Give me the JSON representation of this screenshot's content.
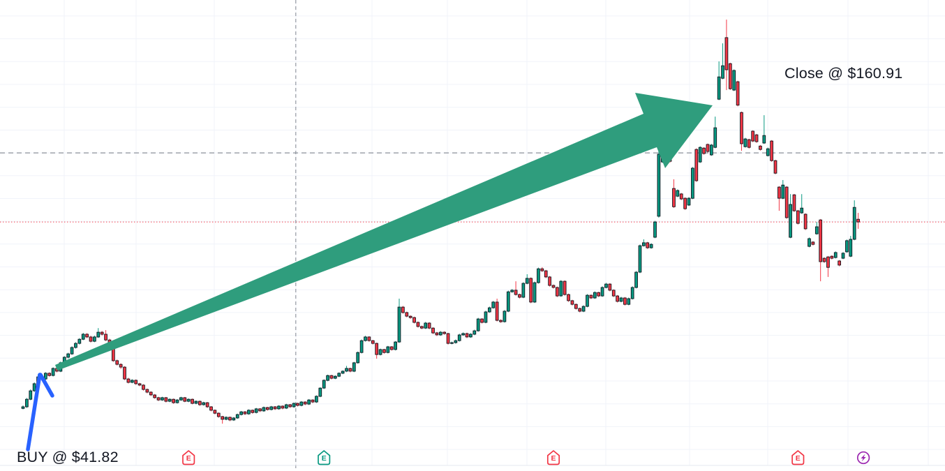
{
  "annotations": {
    "buy_label": "BUY @ $41.82",
    "close_label": "Close @ $160.91"
  },
  "colors": {
    "background": "#ffffff",
    "candle_up": "#089981",
    "candle_down": "#f23645",
    "candle_border": "#10131c",
    "big_arrow": "#2f9d7d",
    "hand_arrow": "#2962ff",
    "grid": "#f0f3fa",
    "dashed_level": "#8b909a",
    "last_price_line": "#f23645",
    "text": "#131722",
    "separator": "#e6e9ef",
    "marker_earnings_red": "#f23645",
    "marker_earnings_green": "#089981",
    "marker_split_purple": "#9c27b0"
  },
  "chart_data": {
    "type": "candlestick",
    "title": "",
    "xlabel": "",
    "ylabel": "",
    "grid": "on",
    "axis_labels_visible": false,
    "y_axis": {
      "min": 3,
      "max": 207,
      "gridline_step_dollars": 10
    },
    "buy_point": {
      "price": 41.82,
      "candle_index": 4
    },
    "close_point": {
      "price": 160.91,
      "candle_index": 190
    },
    "levels": [
      {
        "name": "gray-dashed-level",
        "price": 140.0,
        "style": "dashed",
        "color": "#8b909a"
      },
      {
        "name": "last-price-line",
        "price": 109.7,
        "style": "dotted",
        "color": "#f23645"
      }
    ],
    "vertical_dashed_line": {
      "candle_index": 72.5,
      "style": "dashed",
      "color": "#8b909a"
    },
    "events": [
      {
        "type": "earnings",
        "label": "E",
        "color": "#f23645",
        "index": 44
      },
      {
        "type": "earnings",
        "label": "E",
        "color": "#089981",
        "index": 80
      },
      {
        "type": "earnings",
        "label": "E",
        "color": "#f23645",
        "index": 141
      },
      {
        "type": "earnings",
        "label": "E",
        "color": "#f23645",
        "index": 206
      },
      {
        "type": "split",
        "label": "lightning",
        "color": "#9c27b0",
        "index": 223.4
      }
    ],
    "candles": [
      [
        28.0,
        29.3,
        27.6,
        28.7
      ],
      [
        28.7,
        32.6,
        28.2,
        32.0
      ],
      [
        32.0,
        36.3,
        31.6,
        35.7
      ],
      [
        35.7,
        39.4,
        35.2,
        38.8
      ],
      [
        38.8,
        42.9,
        36.2,
        41.82
      ],
      [
        41.8,
        42.3,
        40.3,
        40.9
      ],
      [
        40.9,
        43.9,
        40.5,
        43.4
      ],
      [
        43.4,
        43.8,
        41.9,
        42.4
      ],
      [
        42.4,
        46.0,
        42.0,
        45.5
      ],
      [
        45.5,
        45.9,
        43.8,
        44.3
      ],
      [
        44.3,
        48.5,
        43.9,
        48.0
      ],
      [
        48.0,
        50.9,
        47.6,
        50.4
      ],
      [
        50.4,
        52.4,
        49.9,
        51.9
      ],
      [
        51.9,
        55.2,
        51.5,
        54.7
      ],
      [
        54.7,
        57.0,
        54.2,
        56.5
      ],
      [
        56.5,
        58.8,
        56.0,
        58.3
      ],
      [
        58.3,
        61.1,
        57.9,
        60.5
      ],
      [
        60.5,
        61.0,
        58.8,
        59.3
      ],
      [
        59.3,
        59.8,
        56.9,
        57.4
      ],
      [
        57.4,
        59.9,
        57.0,
        59.3
      ],
      [
        59.3,
        63.2,
        58.9,
        61.4
      ],
      [
        61.4,
        61.9,
        59.9,
        60.5
      ],
      [
        60.5,
        62.3,
        57.5,
        58.0
      ],
      [
        58.0,
        58.5,
        56.3,
        56.8
      ],
      [
        56.8,
        57.1,
        48.4,
        48.9
      ],
      [
        48.9,
        49.4,
        46.8,
        47.3
      ],
      [
        47.3,
        47.8,
        45.3,
        46.1
      ],
      [
        46.1,
        46.5,
        40.4,
        40.9
      ],
      [
        40.9,
        41.4,
        38.9,
        39.4
      ],
      [
        39.4,
        40.8,
        39.0,
        40.3
      ],
      [
        40.3,
        40.7,
        38.3,
        38.8
      ],
      [
        38.8,
        39.2,
        37.7,
        38.2
      ],
      [
        38.2,
        38.6,
        35.8,
        36.3
      ],
      [
        36.3,
        36.7,
        34.6,
        35.1
      ],
      [
        35.1,
        35.5,
        33.4,
        33.9
      ],
      [
        33.9,
        34.3,
        32.2,
        32.7
      ],
      [
        32.7,
        33.1,
        31.2,
        31.7
      ],
      [
        31.7,
        33.1,
        31.3,
        32.7
      ],
      [
        32.7,
        33.0,
        30.6,
        31.1
      ],
      [
        31.1,
        32.4,
        30.7,
        32.0
      ],
      [
        32.0,
        32.3,
        30.0,
        30.5
      ],
      [
        30.5,
        32.1,
        30.1,
        31.7
      ],
      [
        31.7,
        33.1,
        31.3,
        32.7
      ],
      [
        32.7,
        33.0,
        30.7,
        31.1
      ],
      [
        31.1,
        32.4,
        30.7,
        32.0
      ],
      [
        32.0,
        32.3,
        29.8,
        30.2
      ],
      [
        30.2,
        31.5,
        29.8,
        31.1
      ],
      [
        31.1,
        31.4,
        29.1,
        29.6
      ],
      [
        29.6,
        30.9,
        29.2,
        30.5
      ],
      [
        30.5,
        30.8,
        28.2,
        28.7
      ],
      [
        28.7,
        29.0,
        26.7,
        27.2
      ],
      [
        27.2,
        27.5,
        25.4,
        25.9
      ],
      [
        25.9,
        26.2,
        23.9,
        24.4
      ],
      [
        24.4,
        24.7,
        21.3,
        23.2
      ],
      [
        23.2,
        24.5,
        22.8,
        24.1
      ],
      [
        24.1,
        24.4,
        22.4,
        22.9
      ],
      [
        22.9,
        24.2,
        22.5,
        23.8
      ],
      [
        23.8,
        25.7,
        23.4,
        25.3
      ],
      [
        25.3,
        26.9,
        24.9,
        26.5
      ],
      [
        26.5,
        26.8,
        25.1,
        25.6
      ],
      [
        25.6,
        27.6,
        25.2,
        27.2
      ],
      [
        27.2,
        27.5,
        25.7,
        26.2
      ],
      [
        26.2,
        28.2,
        25.8,
        27.8
      ],
      [
        27.8,
        28.1,
        26.4,
        26.9
      ],
      [
        26.9,
        28.8,
        26.5,
        28.4
      ],
      [
        28.4,
        28.7,
        27.0,
        27.5
      ],
      [
        27.5,
        29.1,
        27.1,
        28.7
      ],
      [
        28.7,
        29.0,
        27.3,
        27.8
      ],
      [
        27.8,
        29.4,
        27.4,
        29.0
      ],
      [
        29.0,
        29.3,
        27.6,
        28.1
      ],
      [
        28.1,
        30.0,
        27.7,
        29.6
      ],
      [
        29.6,
        29.9,
        28.2,
        28.7
      ],
      [
        28.7,
        30.6,
        28.3,
        30.2
      ],
      [
        30.2,
        30.5,
        28.8,
        29.3
      ],
      [
        29.3,
        31.2,
        28.9,
        30.8
      ],
      [
        30.8,
        31.1,
        29.4,
        29.9
      ],
      [
        29.9,
        32.1,
        29.5,
        31.7
      ],
      [
        31.7,
        32.0,
        30.3,
        30.8
      ],
      [
        30.8,
        33.7,
        30.4,
        33.3
      ],
      [
        33.3,
        37.3,
        32.9,
        36.9
      ],
      [
        36.9,
        40.7,
        36.5,
        40.3
      ],
      [
        40.3,
        42.8,
        39.9,
        42.4
      ],
      [
        42.4,
        42.7,
        40.7,
        41.2
      ],
      [
        41.2,
        42.5,
        40.8,
        42.1
      ],
      [
        42.1,
        43.8,
        41.7,
        43.4
      ],
      [
        43.4,
        44.7,
        43.0,
        44.3
      ],
      [
        44.3,
        46.6,
        43.9,
        45.5
      ],
      [
        45.5,
        45.8,
        43.8,
        44.3
      ],
      [
        44.3,
        48.4,
        43.9,
        48.0
      ],
      [
        48.0,
        52.9,
        47.6,
        52.5
      ],
      [
        52.5,
        58.2,
        52.1,
        57.7
      ],
      [
        57.7,
        59.8,
        57.3,
        59.3
      ],
      [
        59.3,
        59.6,
        57.2,
        57.7
      ],
      [
        57.7,
        58.0,
        56.0,
        56.5
      ],
      [
        56.5,
        56.8,
        49.8,
        51.6
      ],
      [
        51.6,
        54.2,
        51.2,
        53.8
      ],
      [
        53.8,
        54.1,
        52.0,
        52.5
      ],
      [
        52.5,
        55.4,
        52.1,
        55.0
      ],
      [
        55.0,
        55.3,
        53.3,
        53.8
      ],
      [
        53.8,
        57.5,
        53.4,
        57.1
      ],
      [
        57.1,
        76.1,
        56.7,
        72.4
      ],
      [
        72.4,
        72.9,
        69.5,
        70.0
      ],
      [
        70.0,
        70.4,
        67.9,
        68.4
      ],
      [
        68.4,
        68.8,
        67.3,
        67.8
      ],
      [
        67.8,
        68.2,
        65.2,
        65.7
      ],
      [
        65.7,
        66.1,
        63.4,
        63.9
      ],
      [
        63.9,
        64.3,
        62.7,
        63.2
      ],
      [
        63.2,
        65.9,
        62.8,
        65.4
      ],
      [
        65.4,
        65.8,
        62.7,
        63.2
      ],
      [
        63.2,
        63.6,
        60.6,
        61.1
      ],
      [
        61.1,
        61.5,
        59.7,
        60.2
      ],
      [
        60.2,
        61.9,
        59.8,
        61.4
      ],
      [
        61.4,
        61.8,
        60.3,
        60.8
      ],
      [
        60.8,
        61.1,
        56.0,
        56.5
      ],
      [
        56.5,
        57.3,
        56.1,
        56.8
      ],
      [
        56.8,
        58.2,
        56.4,
        57.7
      ],
      [
        57.7,
        60.7,
        57.3,
        60.2
      ],
      [
        60.2,
        61.3,
        59.8,
        60.8
      ],
      [
        60.8,
        61.2,
        58.8,
        59.3
      ],
      [
        59.3,
        61.0,
        58.9,
        60.5
      ],
      [
        60.5,
        62.5,
        60.1,
        62.0
      ],
      [
        62.0,
        67.7,
        61.6,
        67.2
      ],
      [
        67.2,
        67.5,
        65.2,
        65.7
      ],
      [
        65.7,
        70.8,
        65.3,
        70.3
      ],
      [
        70.3,
        72.6,
        69.9,
        72.1
      ],
      [
        72.1,
        75.1,
        71.7,
        74.6
      ],
      [
        74.6,
        76.1,
        66.1,
        66.6
      ],
      [
        66.6,
        67.0,
        65.5,
        66.0
      ],
      [
        66.0,
        71.1,
        65.6,
        70.6
      ],
      [
        70.6,
        79.6,
        70.2,
        79.1
      ],
      [
        79.1,
        80.3,
        78.7,
        79.8
      ],
      [
        79.8,
        83.7,
        77.4,
        77.9
      ],
      [
        77.9,
        78.3,
        76.2,
        76.7
      ],
      [
        76.7,
        83.3,
        76.3,
        82.8
      ],
      [
        82.8,
        86.8,
        82.4,
        85.0
      ],
      [
        85.0,
        85.4,
        74.1,
        74.6
      ],
      [
        74.6,
        83.6,
        74.2,
        83.1
      ],
      [
        83.1,
        89.7,
        82.7,
        89.2
      ],
      [
        89.2,
        89.9,
        87.8,
        88.3
      ],
      [
        88.3,
        88.7,
        85.1,
        85.6
      ],
      [
        85.6,
        86.0,
        81.4,
        81.9
      ],
      [
        81.9,
        82.3,
        80.5,
        81.0
      ],
      [
        81.0,
        81.4,
        76.8,
        77.3
      ],
      [
        77.3,
        84.2,
        76.9,
        83.7
      ],
      [
        83.7,
        84.1,
        77.4,
        77.9
      ],
      [
        77.9,
        78.3,
        74.7,
        75.2
      ],
      [
        75.2,
        75.6,
        73.1,
        73.6
      ],
      [
        73.6,
        74.0,
        71.3,
        71.8
      ],
      [
        71.8,
        72.2,
        70.1,
        70.6
      ],
      [
        70.6,
        73.2,
        70.2,
        72.7
      ],
      [
        72.7,
        78.1,
        72.3,
        77.6
      ],
      [
        77.6,
        77.9,
        75.9,
        76.4
      ],
      [
        76.4,
        79.3,
        76.0,
        78.8
      ],
      [
        78.8,
        79.1,
        76.8,
        77.3
      ],
      [
        77.3,
        81.5,
        76.9,
        81.0
      ],
      [
        81.0,
        83.0,
        80.6,
        82.5
      ],
      [
        82.5,
        82.9,
        79.3,
        79.8
      ],
      [
        79.8,
        80.2,
        76.8,
        77.3
      ],
      [
        77.3,
        77.7,
        74.4,
        74.9
      ],
      [
        74.9,
        76.9,
        74.5,
        76.4
      ],
      [
        76.4,
        76.8,
        73.1,
        73.6
      ],
      [
        73.6,
        76.6,
        73.2,
        76.1
      ],
      [
        76.1,
        81.5,
        75.7,
        81.0
      ],
      [
        81.0,
        88.2,
        80.6,
        87.7
      ],
      [
        87.7,
        99.8,
        87.3,
        99.3
      ],
      [
        99.3,
        102.1,
        98.9,
        100.6
      ],
      [
        100.6,
        101.0,
        97.9,
        98.4
      ],
      [
        98.4,
        100.4,
        98.0,
        99.9
      ],
      [
        103.0,
        110.2,
        102.6,
        109.7
      ],
      [
        112.2,
        140.9,
        111.6,
        139.4
      ],
      [
        136.0,
        145.4,
        135.6,
        144.9
      ],
      [
        141.2,
        147.5,
        140.8,
        147.0
      ],
      [
        147.0,
        148.9,
        135.8,
        136.3
      ],
      [
        124.4,
        128.4,
        115.9,
        116.4
      ],
      [
        121.0,
        124.0,
        120.6,
        123.5
      ],
      [
        122.0,
        122.4,
        119.3,
        119.8
      ],
      [
        120.1,
        120.5,
        115.0,
        115.5
      ],
      [
        117.1,
        120.6,
        116.7,
        120.1
      ],
      [
        120.1,
        133.8,
        119.7,
        133.3
      ],
      [
        141.5,
        142.0,
        127.3,
        127.8
      ],
      [
        136.0,
        142.9,
        135.6,
        142.4
      ],
      [
        142.1,
        142.5,
        139.2,
        139.7
      ],
      [
        143.7,
        144.1,
        140.1,
        140.6
      ],
      [
        139.1,
        143.9,
        138.7,
        143.4
      ],
      [
        142.4,
        155.9,
        142.0,
        151.0
      ],
      [
        163.5,
        180.1,
        163.1,
        173.3
      ],
      [
        172.7,
        188.0,
        172.3,
        178.2
      ],
      [
        190.5,
        198.4,
        167.5,
        176.4
      ],
      [
        179.1,
        179.5,
        167.6,
        168.1
      ],
      [
        167.5,
        176.6,
        167.1,
        176.1
      ],
      [
        171.2,
        171.6,
        160.4,
        160.91
      ],
      [
        157.7,
        158.1,
        140.9,
        144.0
      ],
      [
        142.7,
        146.6,
        142.3,
        146.1
      ],
      [
        145.8,
        146.2,
        141.9,
        142.4
      ],
      [
        149.5,
        149.9,
        144.7,
        145.2
      ],
      [
        147.9,
        148.3,
        144.4,
        144.9
      ],
      [
        143.0,
        143.4,
        141.0,
        141.5
      ],
      [
        144.3,
        156.5,
        143.9,
        147.6
      ],
      [
        138.8,
        142.3,
        138.4,
        141.8
      ],
      [
        145.2,
        145.6,
        136.1,
        136.6
      ],
      [
        136.6,
        137.0,
        130.6,
        131.1
      ],
      [
        125.0,
        125.4,
        114.6,
        120.1
      ],
      [
        120.1,
        128.1,
        119.7,
        125.9
      ],
      [
        125.0,
        125.4,
        111.1,
        111.6
      ],
      [
        103.0,
        121.9,
        102.6,
        117.4
      ],
      [
        121.6,
        122.0,
        114.1,
        114.6
      ],
      [
        114.6,
        115.0,
        108.6,
        109.1
      ],
      [
        113.7,
        121.9,
        113.3,
        115.8
      ],
      [
        113.1,
        113.5,
        106.2,
        106.7
      ],
      [
        99.0,
        102.9,
        98.6,
        102.4
      ],
      [
        100.9,
        101.3,
        99.4,
        99.9
      ],
      [
        104.5,
        109.7,
        104.1,
        107.6
      ],
      [
        110.6,
        111.0,
        83.7,
        92.3
      ],
      [
        93.8,
        94.2,
        91.8,
        92.3
      ],
      [
        94.4,
        94.8,
        85.6,
        89.8
      ],
      [
        94.7,
        95.1,
        93.3,
        93.8
      ],
      [
        94.1,
        96.8,
        93.7,
        96.3
      ],
      [
        92.6,
        93.0,
        90.3,
        90.8
      ],
      [
        93.8,
        96.5,
        93.4,
        96.0
      ],
      [
        96.6,
        102.0,
        96.2,
        101.5
      ],
      [
        94.7,
        103.6,
        94.3,
        102.1
      ],
      [
        102.1,
        119.2,
        101.7,
        116.1
      ],
      [
        110.9,
        113.7,
        106.7,
        109.7
      ]
    ]
  }
}
